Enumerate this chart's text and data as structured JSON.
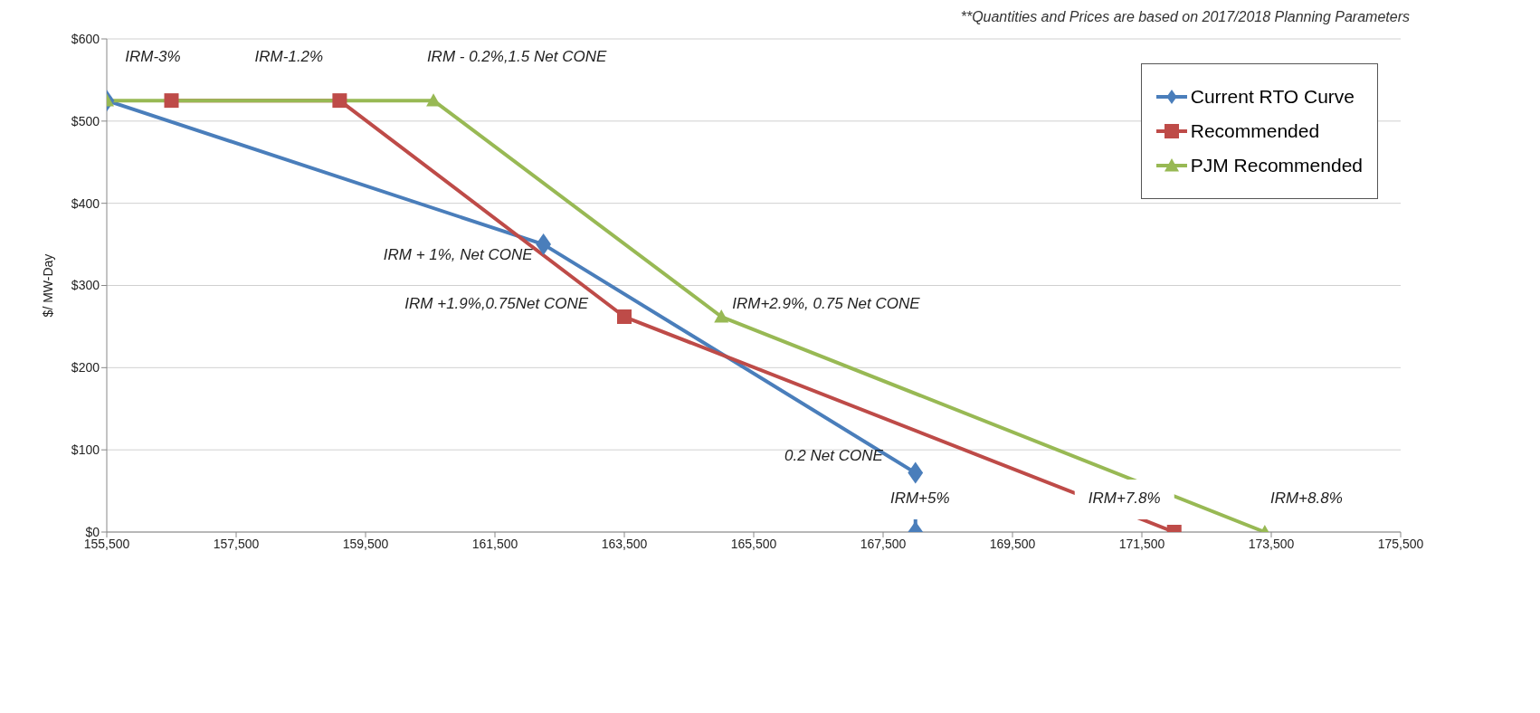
{
  "chart_data": {
    "type": "line",
    "ylabel": "$/ MW-Day",
    "series": [
      {
        "name": "Current RTO Curve",
        "color": "#4a7ebb",
        "marker": "diamond",
        "x": [
          155500,
          162250,
          168000,
          168000
        ],
        "values": [
          525,
          350,
          72,
          0
        ]
      },
      {
        "name": "Recommended",
        "color": "#be4b48",
        "marker": "square",
        "x": [
          156500,
          159100,
          163500,
          172000
        ],
        "values": [
          525,
          525,
          262,
          0
        ]
      },
      {
        "name": "PJM Recommended",
        "color": "#98b954",
        "marker": "triangle",
        "x": [
          155500,
          160550,
          165000,
          173400
        ],
        "values": [
          525,
          525,
          262,
          0
        ]
      }
    ],
    "xlim": [
      155500,
      175500
    ],
    "xticks": [
      {
        "value": 155500,
        "label": "155,500"
      },
      {
        "value": 157500,
        "label": "157,500"
      },
      {
        "value": 159500,
        "label": "159,500"
      },
      {
        "value": 161500,
        "label": "161,500"
      },
      {
        "value": 163500,
        "label": "163,500"
      },
      {
        "value": 165500,
        "label": "165,500"
      },
      {
        "value": 167500,
        "label": "167,500"
      },
      {
        "value": 169500,
        "label": "169,500"
      },
      {
        "value": 171500,
        "label": "171,500"
      },
      {
        "value": 173500,
        "label": "173,500"
      },
      {
        "value": 175500,
        "label": "175,500"
      }
    ],
    "ylim": [
      0,
      600
    ],
    "yticks": [
      {
        "value": 0,
        "label": "$0"
      },
      {
        "value": 100,
        "label": "$100"
      },
      {
        "value": 200,
        "label": "$200"
      },
      {
        "value": 300,
        "label": "$300"
      },
      {
        "value": 400,
        "label": "$400"
      },
      {
        "value": 500,
        "label": "$500"
      },
      {
        "value": 600,
        "label": "$600"
      }
    ],
    "grid": "y",
    "legend": "top right",
    "line_style": "solid",
    "annotations": [
      {
        "text": "IRM-3%",
        "x": 155500,
        "y": 525
      },
      {
        "text": "IRM-1.2%",
        "x": 159100,
        "y": 525
      },
      {
        "text": "IRM - 0.2%,1.5 Net CONE",
        "x": 160550,
        "y": 525
      },
      {
        "text": "IRM + 1%, Net CONE",
        "x": 162250,
        "y": 350
      },
      {
        "text": "IRM +1.9%,0.75Net CONE",
        "x": 163500,
        "y": 262
      },
      {
        "text": "IRM+2.9%, 0.75 Net CONE",
        "x": 165000,
        "y": 262
      },
      {
        "text": "0.2 Net CONE",
        "x": 168000,
        "y": 72
      },
      {
        "text": "IRM+5%",
        "x": 168000,
        "y": 0
      },
      {
        "text": "IRM+7.8%",
        "x": 172000,
        "y": 0
      },
      {
        "text": "IRM+8.8%",
        "x": 173400,
        "y": 0
      },
      "**Quantities and Prices are based on 2017/2018 Planning Parameters"
    ]
  }
}
